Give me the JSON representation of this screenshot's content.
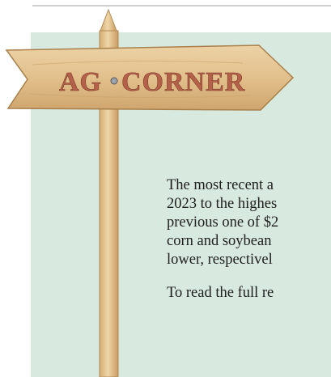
{
  "sign": {
    "left_word": "AG",
    "right_word": "CORNER"
  },
  "article": {
    "lines": [
      "The most recent a",
      "2023 to the highes",
      "previous one of $2",
      "corn and soybean",
      "lower, respectivel"
    ],
    "link_line": "To read the full re"
  }
}
